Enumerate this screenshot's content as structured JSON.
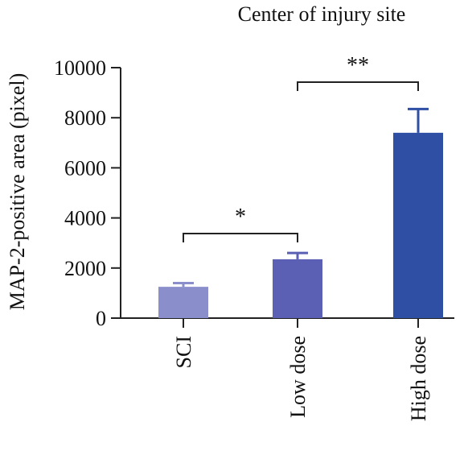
{
  "chart_data": {
    "type": "bar",
    "title": "Center of injury site",
    "ylabel": "MAP-2-positive area (pixel)",
    "xlabel": "",
    "categories": [
      "SCI",
      "Low dose",
      "High dose"
    ],
    "values": [
      1250,
      2350,
      7400
    ],
    "errors": [
      150,
      250,
      950
    ],
    "ylim": [
      0,
      10000
    ],
    "yticks": [
      0,
      2000,
      4000,
      6000,
      8000,
      10000
    ],
    "ytick_labels": [
      "0",
      "2000",
      "4000",
      "6000",
      "8000",
      "10000"
    ],
    "bar_colors": [
      "#8a8fcc",
      "#5b60b4",
      "#2f4fa5"
    ],
    "significance": [
      {
        "from": 0,
        "to": 1,
        "label": "*"
      },
      {
        "from": 1,
        "to": 2,
        "label": "**"
      }
    ],
    "grid": false,
    "legend": "none"
  }
}
